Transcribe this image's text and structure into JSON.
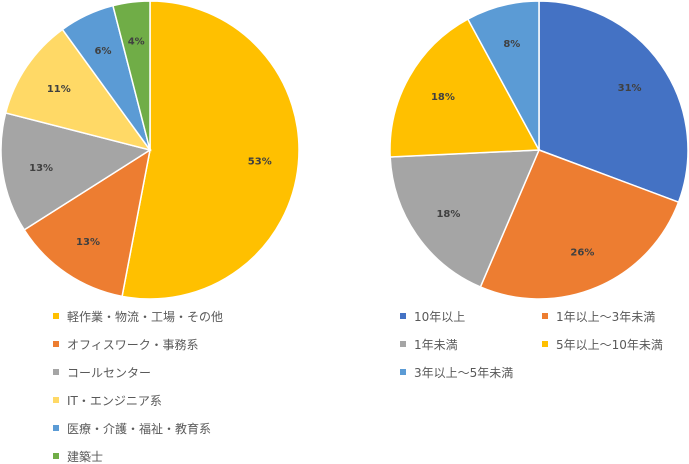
{
  "chart_data": [
    {
      "type": "pie",
      "title": "",
      "labels": [
        "軽作業・物流・工場・その他",
        "オフィスワーク・事務系",
        "コールセンター",
        "IT・エンジニア系",
        "医療・介護・福祉・教育系",
        "建築士"
      ],
      "values": [
        53,
        13,
        13,
        11,
        6,
        4
      ],
      "data_labels": [
        "53%",
        "13%",
        "13%",
        "11%",
        "6%",
        "4%"
      ],
      "colors": [
        "#FFC000",
        "#ED7D31",
        "#A5A5A5",
        "#FFD966",
        "#5B9BD5",
        "#70AD47"
      ],
      "start": "12 o'clock, clockwise",
      "legend_position": "bottom"
    },
    {
      "type": "pie",
      "title": "",
      "labels": [
        "10年以上",
        "1年以上～3年未満",
        "1年未満",
        "5年以上～10年未満",
        "3年以上～5年未満"
      ],
      "values": [
        31,
        26,
        18,
        18,
        8
      ],
      "data_labels": [
        "31%",
        "26%",
        "18%",
        "18%",
        "8%"
      ],
      "colors": [
        "#4472C4",
        "#ED7D31",
        "#A5A5A5",
        "#FFC000",
        "#5B9BD5"
      ],
      "start": "12 o'clock, clockwise",
      "legend_position": "bottom"
    }
  ]
}
